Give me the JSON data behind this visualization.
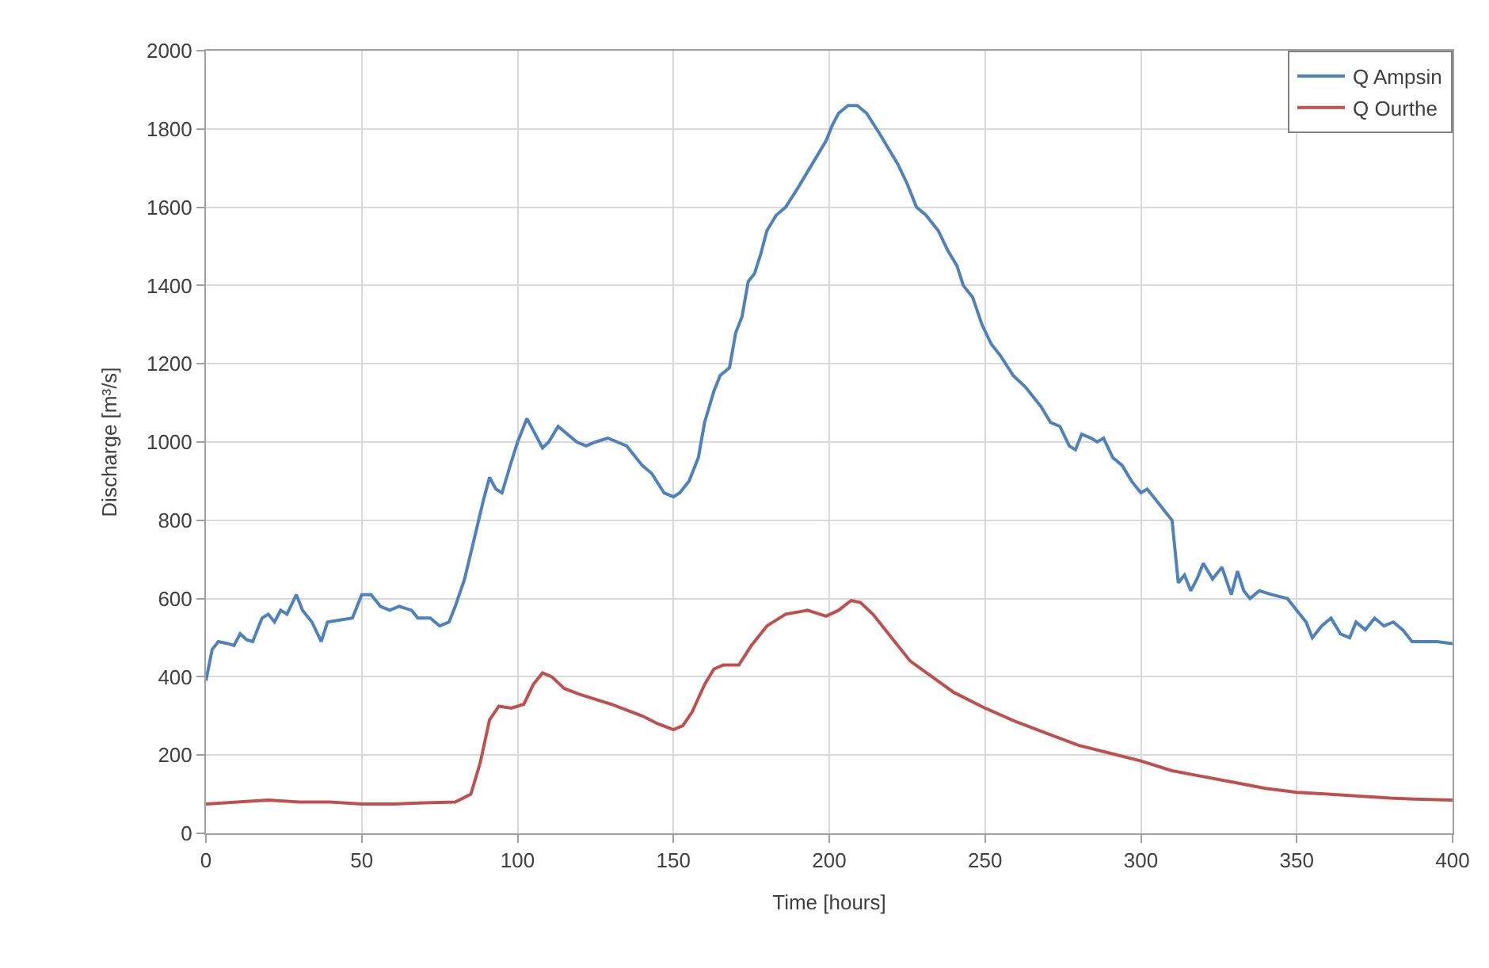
{
  "chart_data": {
    "type": "line",
    "xlabel": "Time [hours]",
    "ylabel": "Discharge [m³/s]",
    "xlim": [
      0,
      400
    ],
    "xticks": [
      0,
      50,
      100,
      150,
      200,
      250,
      300,
      350,
      400
    ],
    "ylim": [
      0,
      2000
    ],
    "yticks": [
      0,
      200,
      400,
      600,
      800,
      1000,
      1200,
      1400,
      1600,
      1800,
      2000
    ],
    "grid": true,
    "legend": "top right",
    "marker": "none",
    "line_style": "solid",
    "series": [
      {
        "name": "Q Ampsin",
        "color": "#4f81bd",
        "x": [
          0,
          2,
          4,
          7,
          9,
          11,
          13,
          15,
          18,
          20,
          22,
          24,
          26,
          29,
          31,
          34,
          37,
          39,
          43,
          47,
          50,
          53,
          56,
          59,
          62,
          66,
          68,
          72,
          75,
          78,
          80,
          83,
          86,
          89,
          91,
          93,
          95,
          98,
          100,
          103,
          105,
          108,
          110,
          113,
          116,
          119,
          122,
          125,
          129,
          132,
          135,
          138,
          140,
          143,
          147,
          150,
          152,
          155,
          158,
          160,
          163,
          165,
          168,
          170,
          172,
          174,
          176,
          178,
          180,
          183,
          186,
          190,
          193,
          196,
          199,
          201,
          203,
          206,
          209,
          212,
          216,
          219,
          222,
          225,
          228,
          231,
          235,
          238,
          241,
          243,
          246,
          249,
          252,
          255,
          259,
          263,
          266,
          268,
          271,
          274,
          277,
          279,
          281,
          284,
          286,
          288,
          291,
          294,
          297,
          300,
          302,
          305,
          308,
          310,
          312,
          314,
          316,
          318,
          320,
          323,
          326,
          329,
          331,
          333,
          335,
          338,
          342,
          347,
          350,
          353,
          355,
          358,
          361,
          364,
          367,
          369,
          372,
          375,
          378,
          381,
          384,
          387,
          390,
          395,
          400
        ],
        "values": [
          390,
          470,
          490,
          485,
          480,
          510,
          495,
          490,
          550,
          560,
          540,
          570,
          560,
          610,
          570,
          540,
          490,
          540,
          545,
          550,
          610,
          610,
          580,
          570,
          580,
          570,
          550,
          550,
          530,
          540,
          580,
          650,
          750,
          850,
          910,
          880,
          870,
          950,
          1000,
          1060,
          1030,
          985,
          1000,
          1040,
          1020,
          1000,
          990,
          1000,
          1010,
          1000,
          990,
          960,
          940,
          920,
          870,
          860,
          870,
          900,
          960,
          1050,
          1130,
          1170,
          1190,
          1280,
          1320,
          1410,
          1430,
          1480,
          1540,
          1580,
          1600,
          1650,
          1690,
          1730,
          1770,
          1810,
          1840,
          1860,
          1860,
          1840,
          1790,
          1750,
          1710,
          1660,
          1600,
          1580,
          1540,
          1490,
          1450,
          1400,
          1370,
          1300,
          1250,
          1220,
          1170,
          1140,
          1110,
          1090,
          1050,
          1040,
          990,
          980,
          1020,
          1010,
          1000,
          1010,
          960,
          940,
          900,
          870,
          880,
          850,
          820,
          800,
          640,
          660,
          620,
          650,
          690,
          650,
          680,
          610,
          670,
          620,
          600,
          620,
          610,
          600,
          570,
          540,
          500,
          530,
          550,
          510,
          500,
          540,
          520,
          550,
          530,
          540,
          520,
          490,
          490,
          490,
          485
        ]
      },
      {
        "name": "Q Ourthe",
        "color": "#c0504d",
        "x": [
          0,
          10,
          20,
          30,
          40,
          50,
          60,
          70,
          80,
          85,
          88,
          91,
          94,
          98,
          102,
          105,
          108,
          111,
          115,
          120,
          130,
          140,
          145,
          150,
          153,
          156,
          160,
          163,
          166,
          171,
          175,
          180,
          186,
          193,
          199,
          203,
          207,
          210,
          214,
          220,
          226,
          233,
          240,
          250,
          260,
          270,
          280,
          290,
          300,
          310,
          320,
          330,
          340,
          350,
          360,
          370,
          380,
          390,
          400
        ],
        "values": [
          75,
          80,
          85,
          80,
          80,
          75,
          75,
          78,
          80,
          100,
          180,
          290,
          325,
          320,
          330,
          380,
          410,
          400,
          370,
          355,
          330,
          300,
          280,
          265,
          275,
          310,
          380,
          420,
          430,
          430,
          480,
          530,
          560,
          570,
          555,
          570,
          595,
          590,
          560,
          500,
          440,
          400,
          360,
          320,
          285,
          255,
          225,
          205,
          185,
          160,
          145,
          130,
          115,
          105,
          100,
          95,
          90,
          87,
          85
        ]
      }
    ]
  }
}
